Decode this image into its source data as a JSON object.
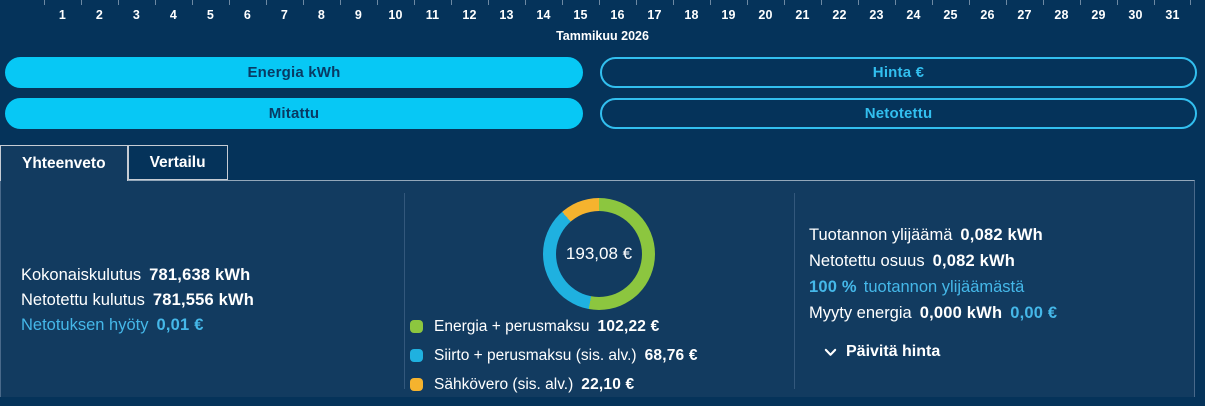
{
  "calendar": {
    "days": [
      "1",
      "2",
      "3",
      "4",
      "5",
      "6",
      "7",
      "8",
      "9",
      "10",
      "11",
      "12",
      "13",
      "14",
      "15",
      "16",
      "17",
      "18",
      "19",
      "20",
      "21",
      "22",
      "23",
      "24",
      "25",
      "26",
      "27",
      "28",
      "29",
      "30",
      "31"
    ],
    "month_label": "Tammikuu 2026"
  },
  "toggles": {
    "energia": "Energia kWh",
    "hinta": "Hinta €",
    "mitattu": "Mitattu",
    "netotettu": "Netotettu"
  },
  "tabs": [
    {
      "label": "Yhteenveto",
      "active": true
    },
    {
      "label": "Vertailu",
      "active": false
    }
  ],
  "summary": {
    "kokonaiskulutus_label": "Kokonaiskulutus",
    "kokonaiskulutus_value": "781,638 kWh",
    "netotettu_kulutus_label": "Netotettu kulutus",
    "netotettu_kulutus_value": "781,556 kWh",
    "netotuksen_hyoty_label": "Netotuksen hyöty",
    "netotuksen_hyoty_value": "0,01 €"
  },
  "chart_data": {
    "type": "pie",
    "style": "donut",
    "center_total": "193,08 €",
    "total_value": 193.08,
    "unit": "€",
    "legend_position": "bottom",
    "segments": [
      {
        "label": "Energia + perusmaksu",
        "value": 102.22,
        "value_text": "102,22 €",
        "color": "#8cc63f"
      },
      {
        "label": "Siirto + perusmaksu (sis. alv.)",
        "value": 68.76,
        "value_text": "68,76 €",
        "color": "#1fb1e0"
      },
      {
        "label": "Sähkövero (sis. alv.)",
        "value": 22.1,
        "value_text": "22,10 €",
        "color": "#f5b32e"
      }
    ]
  },
  "production": {
    "ylijaama_label": "Tuotannon ylijäämä",
    "ylijaama_value": "0,082 kWh",
    "netotettu_osuus_label": "Netotettu osuus",
    "netotettu_osuus_value": "0,082 kWh",
    "share_pct": "100 %",
    "share_text": "tuotannon ylijäämästä",
    "myyty_label": "Myyty energia",
    "myyty_value": "0,000 kWh",
    "myyty_eur": "0,00 €",
    "paivita_hinta": "Päivitä hinta"
  },
  "colors": {
    "page_bg": "#05335a",
    "panel_bg": "#123b60",
    "accent_cyan_fill": "#07c8f5",
    "accent_cyan_outline": "#32bfef",
    "cyan_text": "#45b8e9",
    "white_text": "#ffffff"
  }
}
